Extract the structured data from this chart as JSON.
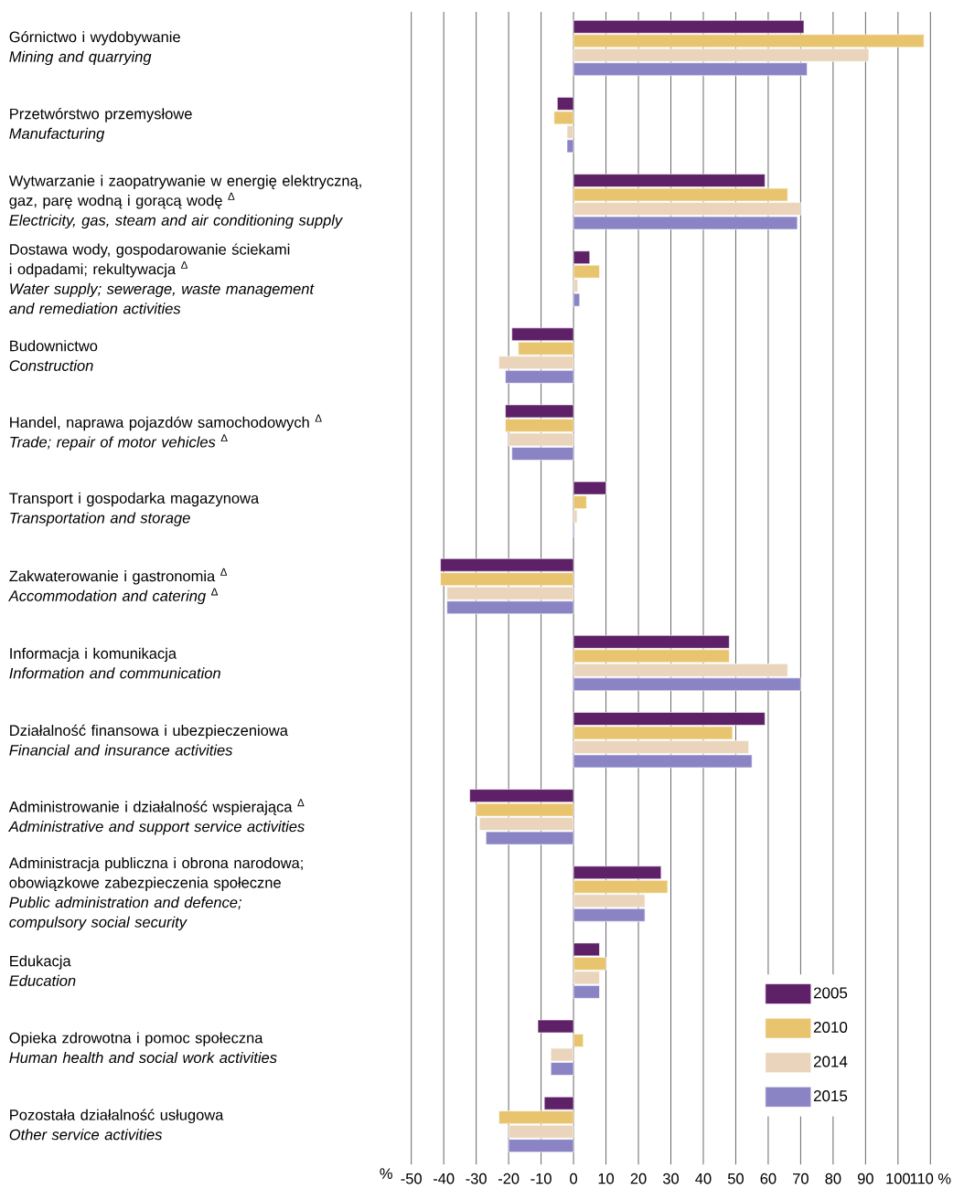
{
  "chart_data": {
    "type": "bar",
    "orientation": "horizontal",
    "categories": [
      "Górnictwo i wydobywanie\n*Mining and quarrying*",
      "Przetwórstwo przemysłowe\n*Manufacturing*",
      "Wytwarzanie i zaopatrywanie w energię elektryczną,\ngaz, parę wodną i gorącą wodę $^{Δ}$\n*Electricity, gas, steam and air conditioning supply*",
      "Dostawa wody, gospodarowanie ściekami\ni odpadami; rekultywacja $^{Δ}$\n*Water supply; sewerage, waste management*\n*and remediation activities*",
      "Budownictwo\n*Construction*",
      "Handel, naprawa pojazdów samochodowych $^{Δ}$\n*Trade; repair of motor vehicles* $^{Δ}$",
      "Transport i gospodarka magazynowa\n*Transportation and storage*",
      "Zakwaterowanie i gastronomia $^{Δ}$\n*Accommodation and catering* $^{Δ}$",
      "Informacja i komunikacja\n*Information and communication*",
      "Działalność finansowa i ubezpieczeniowa\n*Financial and insurance activities*",
      "Administrowanie i działalność wspierająca $^{Δ}$\n*Administrative and support service activities*",
      "Administracja publiczna i obrona narodowa;\nobowiązkowe zabezpieczenia społeczne\n*Public administration and defence;*\n*compulsory social security*",
      "Edukacja\n*Education*",
      "Opieka zdrowotna i pomoc społeczna\n*Human health and social work activities*",
      "Pozostała działalność usługowa\n*Other service activities*"
    ],
    "series": [
      {
        "name": "2005",
        "color": "#5e2167",
        "values": [
          71,
          -5,
          59,
          5,
          -19,
          -21,
          10,
          -41,
          48,
          59,
          -32,
          27,
          8,
          -11,
          -9
        ]
      },
      {
        "name": "2010",
        "color": "#e8c46e",
        "values": [
          108,
          -6,
          66,
          8,
          -17,
          -21,
          4,
          -41,
          48,
          49,
          -30,
          29,
          10,
          3,
          -23
        ]
      },
      {
        "name": "2014",
        "color": "#ead5bc",
        "values": [
          91,
          -2,
          70,
          1.3,
          -23,
          -20,
          1.1,
          -39,
          66,
          54,
          -29,
          22,
          8,
          -7,
          -20
        ]
      },
      {
        "name": "2015",
        "color": "#8b84c4",
        "values": [
          72,
          -2,
          69,
          1.9,
          -21,
          -19,
          0.3,
          -39,
          70,
          55,
          -27,
          22,
          8,
          -7,
          -20
        ]
      }
    ],
    "xlim": [
      -50,
      110
    ],
    "xticks": [
      -50,
      -40,
      -30,
      -20,
      -10,
      0,
      10,
      20,
      30,
      40,
      50,
      60,
      70,
      80,
      90,
      100,
      {
        "value": 110,
        "label": "110 %"
      }
    ],
    "xlabel": "%",
    "grid": "x",
    "legend": "bottom right"
  }
}
